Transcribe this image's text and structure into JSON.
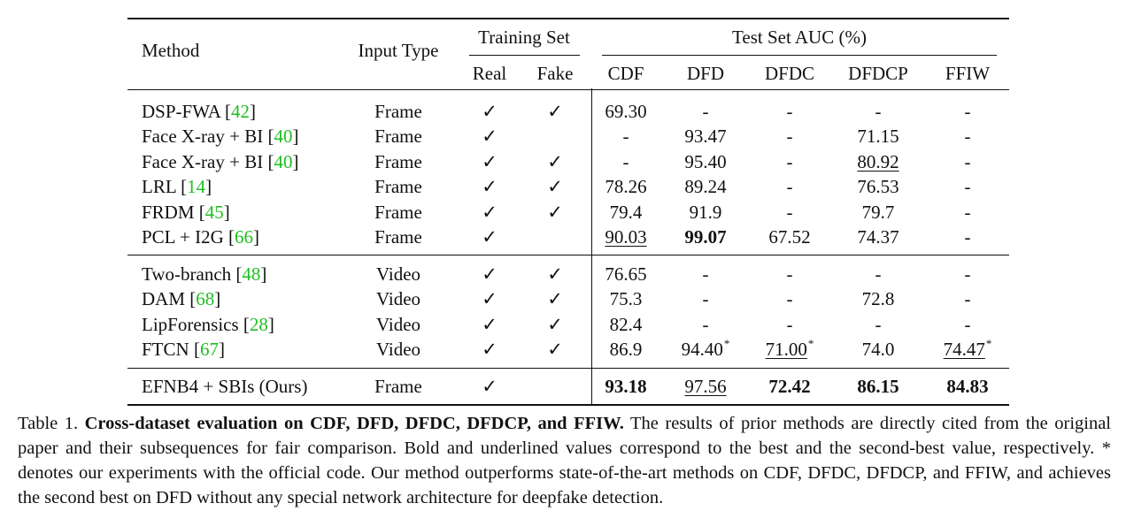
{
  "table": {
    "headers": {
      "method": "Method",
      "input_type": "Input Type",
      "training_set": "Training Set",
      "real": "Real",
      "fake": "Fake",
      "test_auc": "Test Set AUC (%)",
      "cdf": "CDF",
      "dfd": "DFD",
      "dfdc": "DFDC",
      "dfdcp": "DFDCP",
      "ffiw": "FFIW"
    },
    "check": "✓",
    "rows": [
      {
        "method": "DSP-FWA ",
        "ref": "42",
        "input": "Frame",
        "real": "✓",
        "fake": "✓",
        "cdf": "69.30",
        "dfd": "-",
        "dfdc": "-",
        "dfdcp": "-",
        "ffiw": "-"
      },
      {
        "method": "Face X-ray + BI ",
        "ref": "40",
        "input": "Frame",
        "real": "✓",
        "fake": "",
        "cdf": "-",
        "dfd": "93.47",
        "dfdc": "-",
        "dfdcp": "71.15",
        "ffiw": "-"
      },
      {
        "method": "Face X-ray + BI ",
        "ref": "40",
        "input": "Frame",
        "real": "✓",
        "fake": "✓",
        "cdf": "-",
        "dfd": "95.40",
        "dfdc": "-",
        "dfdcp": "80.92",
        "ffiw": "-"
      },
      {
        "method": "LRL ",
        "ref": "14",
        "input": "Frame",
        "real": "✓",
        "fake": "✓",
        "cdf": "78.26",
        "dfd": "89.24",
        "dfdc": "-",
        "dfdcp": "76.53",
        "ffiw": "-"
      },
      {
        "method": "FRDM ",
        "ref": "45",
        "input": "Frame",
        "real": "✓",
        "fake": "✓",
        "cdf": "79.4",
        "dfd": "91.9",
        "dfdc": "-",
        "dfdcp": "79.7",
        "ffiw": "-"
      },
      {
        "method": "PCL + I2G ",
        "ref": "66",
        "input": "Frame",
        "real": "✓",
        "fake": "",
        "cdf": "90.03",
        "dfd": "99.07",
        "dfdc": "67.52",
        "dfdcp": "74.37",
        "ffiw": "-"
      },
      {
        "method": "Two-branch ",
        "ref": "48",
        "input": "Video",
        "real": "✓",
        "fake": "✓",
        "cdf": "76.65",
        "dfd": "-",
        "dfdc": "-",
        "dfdcp": "-",
        "ffiw": "-"
      },
      {
        "method": "DAM ",
        "ref": "68",
        "input": "Video",
        "real": "✓",
        "fake": "✓",
        "cdf": "75.3",
        "dfd": "-",
        "dfdc": "-",
        "dfdcp": "72.8",
        "ffiw": "-"
      },
      {
        "method": "LipForensics ",
        "ref": "28",
        "input": "Video",
        "real": "✓",
        "fake": "✓",
        "cdf": "82.4",
        "dfd": "-",
        "dfdc": "-",
        "dfdcp": "-",
        "ffiw": "-"
      },
      {
        "method": "FTCN  ",
        "ref": "67",
        "input": "Video",
        "real": "✓",
        "fake": "✓",
        "cdf": "86.9",
        "dfd": "94.40",
        "dfdc": "71.00",
        "dfdcp": "74.0",
        "ffiw": "74.47"
      },
      {
        "method": "EFNB4 + SBIs (Ours)",
        "ref": "",
        "input": "Frame",
        "real": "✓",
        "fake": "",
        "cdf": "93.18",
        "dfd": "97.56",
        "dfdc": "72.42",
        "dfdcp": "86.15",
        "ffiw": "84.83"
      }
    ],
    "asterisk": "*"
  },
  "caption": {
    "label": "Table 1. ",
    "title": "Cross-dataset evaluation on CDF, DFD, DFDC, DFDCP, and FFIW.",
    "body": " The results of prior methods are directly cited from the original paper and their subsequences for fair comparison. Bold and underlined values correspond to the best and the second-best value, respectively. * denotes our experiments with the official code. Our method outperforms state-of-the-art methods on CDF, DFDC, DFDCP, and FFIW, and achieves the second best on DFD without any special network architecture for deepfake detection."
  }
}
